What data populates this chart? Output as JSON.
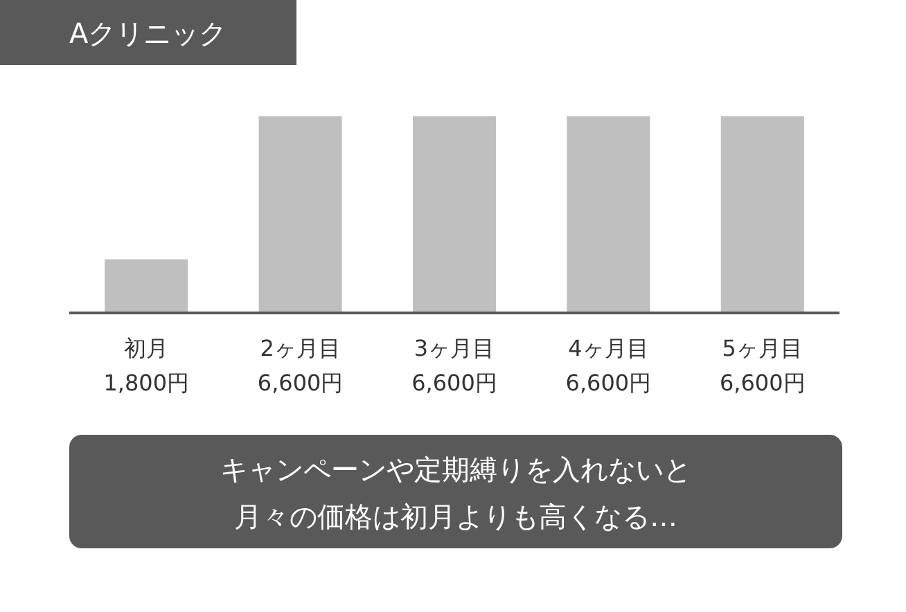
{
  "chart_data": {
    "type": "bar",
    "title": "Aクリニック",
    "categories": [
      "初月",
      "2ヶ月目",
      "3ヶ月目",
      "4ヶ月目",
      "5ヶ月目"
    ],
    "values": [
      1800,
      6600,
      6600,
      6600,
      6600
    ],
    "value_labels": [
      "1,800円",
      "6,600円",
      "6,600円",
      "6,600円",
      "6,600円"
    ],
    "color": "#bfbfbf",
    "annotations": [
      "キャンペーンや定期縛りを入れないと",
      "月々の価格は初月よりも高くなる…"
    ]
  }
}
